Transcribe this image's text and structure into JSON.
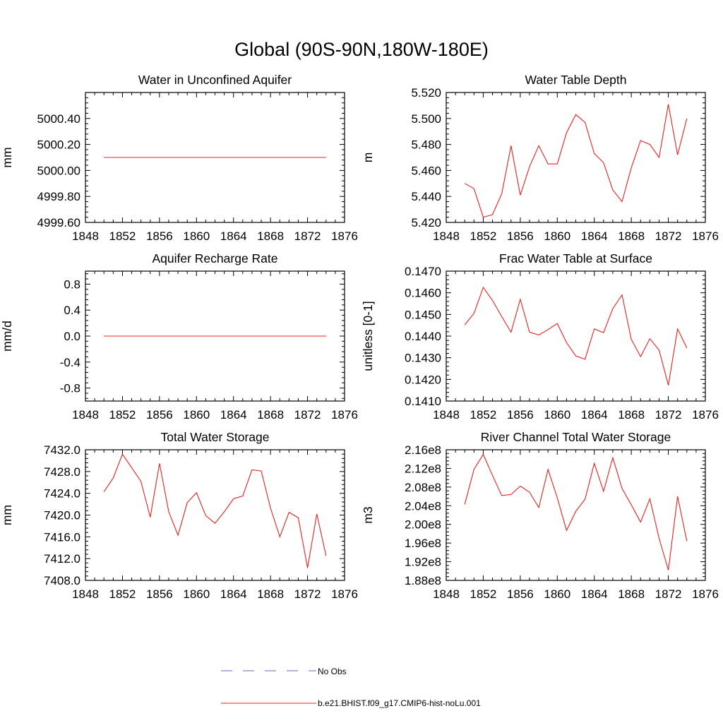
{
  "figure": {
    "title": "Global (90S-90N,180W-180E)",
    "legend": {
      "obs_label": "No Obs",
      "model_label": "b.e21.BHIST.f09_g17.CMIP6-hist-noLu.001",
      "obs_color": "#6a6ab8",
      "model_color": "#e8211f"
    }
  },
  "chart_data": [
    {
      "type": "line",
      "title": "Water in Unconfined Aquifer",
      "ylabel": "mm",
      "xlim": [
        1848,
        1876
      ],
      "xticks": [
        1848,
        1852,
        1856,
        1860,
        1864,
        1868,
        1872,
        1876
      ],
      "ylim": [
        4999.6,
        5000.6
      ],
      "yticks": [
        4999.6,
        4999.8,
        5000.0,
        5000.2,
        5000.4
      ],
      "ytick_labels": [
        "4999.60",
        "4999.80",
        "5000.00",
        "5000.20",
        "5000.40"
      ],
      "x": [
        1850,
        1874
      ],
      "series": [
        {
          "name": "b.e21.BHIST.f09_g17.CMIP6-hist-noLu.001",
          "values": [
            5000.1,
            5000.1
          ]
        }
      ]
    },
    {
      "type": "line",
      "title": "Water Table Depth",
      "ylabel": "m",
      "xlim": [
        1848,
        1876
      ],
      "xticks": [
        1848,
        1852,
        1856,
        1860,
        1864,
        1868,
        1872,
        1876
      ],
      "ylim": [
        5.42,
        5.52
      ],
      "yticks": [
        5.42,
        5.44,
        5.46,
        5.48,
        5.5,
        5.52
      ],
      "ytick_labels": [
        "5.420",
        "5.440",
        "5.460",
        "5.480",
        "5.500",
        "5.520"
      ],
      "x": [
        1850,
        1851,
        1852,
        1853,
        1854,
        1855,
        1856,
        1857,
        1858,
        1859,
        1860,
        1861,
        1862,
        1863,
        1864,
        1865,
        1866,
        1867,
        1868,
        1869,
        1870,
        1871,
        1872,
        1873,
        1874
      ],
      "series": [
        {
          "name": "b.e21.BHIST.f09_g17.CMIP6-hist-noLu.001",
          "values": [
            5.45,
            5.446,
            5.424,
            5.426,
            5.442,
            5.479,
            5.441,
            5.463,
            5.479,
            5.465,
            5.465,
            5.489,
            5.503,
            5.497,
            5.473,
            5.466,
            5.445,
            5.436,
            5.462,
            5.483,
            5.48,
            5.47,
            5.511,
            5.472,
            5.5
          ]
        }
      ]
    },
    {
      "type": "line",
      "title": "Aquifer Recharge Rate",
      "ylabel": "mm/d",
      "xlim": [
        1848,
        1876
      ],
      "xticks": [
        1848,
        1852,
        1856,
        1860,
        1864,
        1868,
        1872,
        1876
      ],
      "ylim": [
        -1.0,
        1.0
      ],
      "yticks": [
        -0.8,
        -0.4,
        0.0,
        0.4,
        0.8
      ],
      "ytick_labels": [
        "-0.8",
        "-0.4",
        "0.0",
        "0.4",
        "0.8"
      ],
      "x": [
        1850,
        1874
      ],
      "series": [
        {
          "name": "b.e21.BHIST.f09_g17.CMIP6-hist-noLu.001",
          "values": [
            0.0,
            0.0
          ]
        }
      ]
    },
    {
      "type": "line",
      "title": "Frac Water Table at Surface",
      "ylabel": "unitless [0-1]",
      "xlim": [
        1848,
        1876
      ],
      "xticks": [
        1848,
        1852,
        1856,
        1860,
        1864,
        1868,
        1872,
        1876
      ],
      "ylim": [
        0.141,
        0.147
      ],
      "yticks": [
        0.141,
        0.142,
        0.143,
        0.144,
        0.145,
        0.146,
        0.147
      ],
      "ytick_labels": [
        "0.1410",
        "0.1420",
        "0.1430",
        "0.1440",
        "0.1450",
        "0.1460",
        "0.1470"
      ],
      "x": [
        1850,
        1851,
        1852,
        1853,
        1854,
        1855,
        1856,
        1857,
        1858,
        1859,
        1860,
        1861,
        1862,
        1863,
        1864,
        1865,
        1866,
        1867,
        1868,
        1869,
        1870,
        1871,
        1872,
        1873,
        1874
      ],
      "series": [
        {
          "name": "b.e21.BHIST.f09_g17.CMIP6-hist-noLu.001",
          "values": [
            0.14452,
            0.14505,
            0.14625,
            0.14565,
            0.1449,
            0.14418,
            0.1457,
            0.14418,
            0.14405,
            0.1443,
            0.14458,
            0.1437,
            0.14308,
            0.14293,
            0.14433,
            0.14416,
            0.14527,
            0.1459,
            0.14385,
            0.14305,
            0.14388,
            0.14335,
            0.14173,
            0.14433,
            0.14345
          ]
        }
      ]
    },
    {
      "type": "line",
      "title": "Total Water Storage",
      "ylabel": "mm",
      "xlim": [
        1848,
        1876
      ],
      "xticks": [
        1848,
        1852,
        1856,
        1860,
        1864,
        1868,
        1872,
        1876
      ],
      "ylim": [
        7408,
        7432
      ],
      "yticks": [
        7408,
        7412,
        7416,
        7420,
        7424,
        7428,
        7432
      ],
      "ytick_labels": [
        "7408.0",
        "7412.0",
        "7416.0",
        "7420.0",
        "7424.0",
        "7428.0",
        "7432.0"
      ],
      "x": [
        1850,
        1851,
        1852,
        1853,
        1854,
        1855,
        1856,
        1857,
        1858,
        1859,
        1860,
        1861,
        1862,
        1863,
        1864,
        1865,
        1866,
        1867,
        1868,
        1869,
        1870,
        1871,
        1872,
        1873,
        1874
      ],
      "series": [
        {
          "name": "b.e21.BHIST.f09_g17.CMIP6-hist-noLu.001",
          "values": [
            7424.3,
            7426.8,
            7431.2,
            7428.7,
            7426.2,
            7419.6,
            7429.5,
            7420.6,
            7416.3,
            7422.3,
            7424.1,
            7419.9,
            7418.5,
            7420.6,
            7423.0,
            7423.5,
            7428.3,
            7428.1,
            7421.3,
            7416.0,
            7420.5,
            7419.5,
            7410.3,
            7420.2,
            7412.5
          ]
        }
      ]
    },
    {
      "type": "line",
      "title": "River Channel Total Water Storage",
      "ylabel": "m3",
      "xlim": [
        1848,
        1876
      ],
      "xticks": [
        1848,
        1852,
        1856,
        1860,
        1864,
        1868,
        1872,
        1876
      ],
      "ylim": [
        188000000.0,
        216000000.0
      ],
      "yticks": [
        188000000.0,
        192000000.0,
        196000000.0,
        200000000.0,
        204000000.0,
        208000000.0,
        212000000.0,
        216000000.0
      ],
      "ytick_labels": [
        "1.88e8",
        "1.92e8",
        "1.96e8",
        "2.00e8",
        "2.04e8",
        "2.08e8",
        "2.12e8",
        "2.16e8"
      ],
      "x": [
        1850,
        1851,
        1852,
        1853,
        1854,
        1855,
        1856,
        1857,
        1858,
        1859,
        1860,
        1861,
        1862,
        1863,
        1864,
        1865,
        1866,
        1867,
        1868,
        1869,
        1870,
        1871,
        1872,
        1873,
        1874
      ],
      "series": [
        {
          "name": "b.e21.BHIST.f09_g17.CMIP6-hist-noLu.001",
          "values": [
            204300000.0,
            211800000.0,
            215000000.0,
            210500000.0,
            206200000.0,
            206400000.0,
            208200000.0,
            206900000.0,
            203600000.0,
            211800000.0,
            205700000.0,
            198700000.0,
            202800000.0,
            205400000.0,
            213100000.0,
            207100000.0,
            214300000.0,
            207700000.0,
            204200000.0,
            200500000.0,
            205500000.0,
            197000000.0,
            190200000.0,
            206000000.0,
            196400000.0
          ]
        }
      ]
    }
  ]
}
